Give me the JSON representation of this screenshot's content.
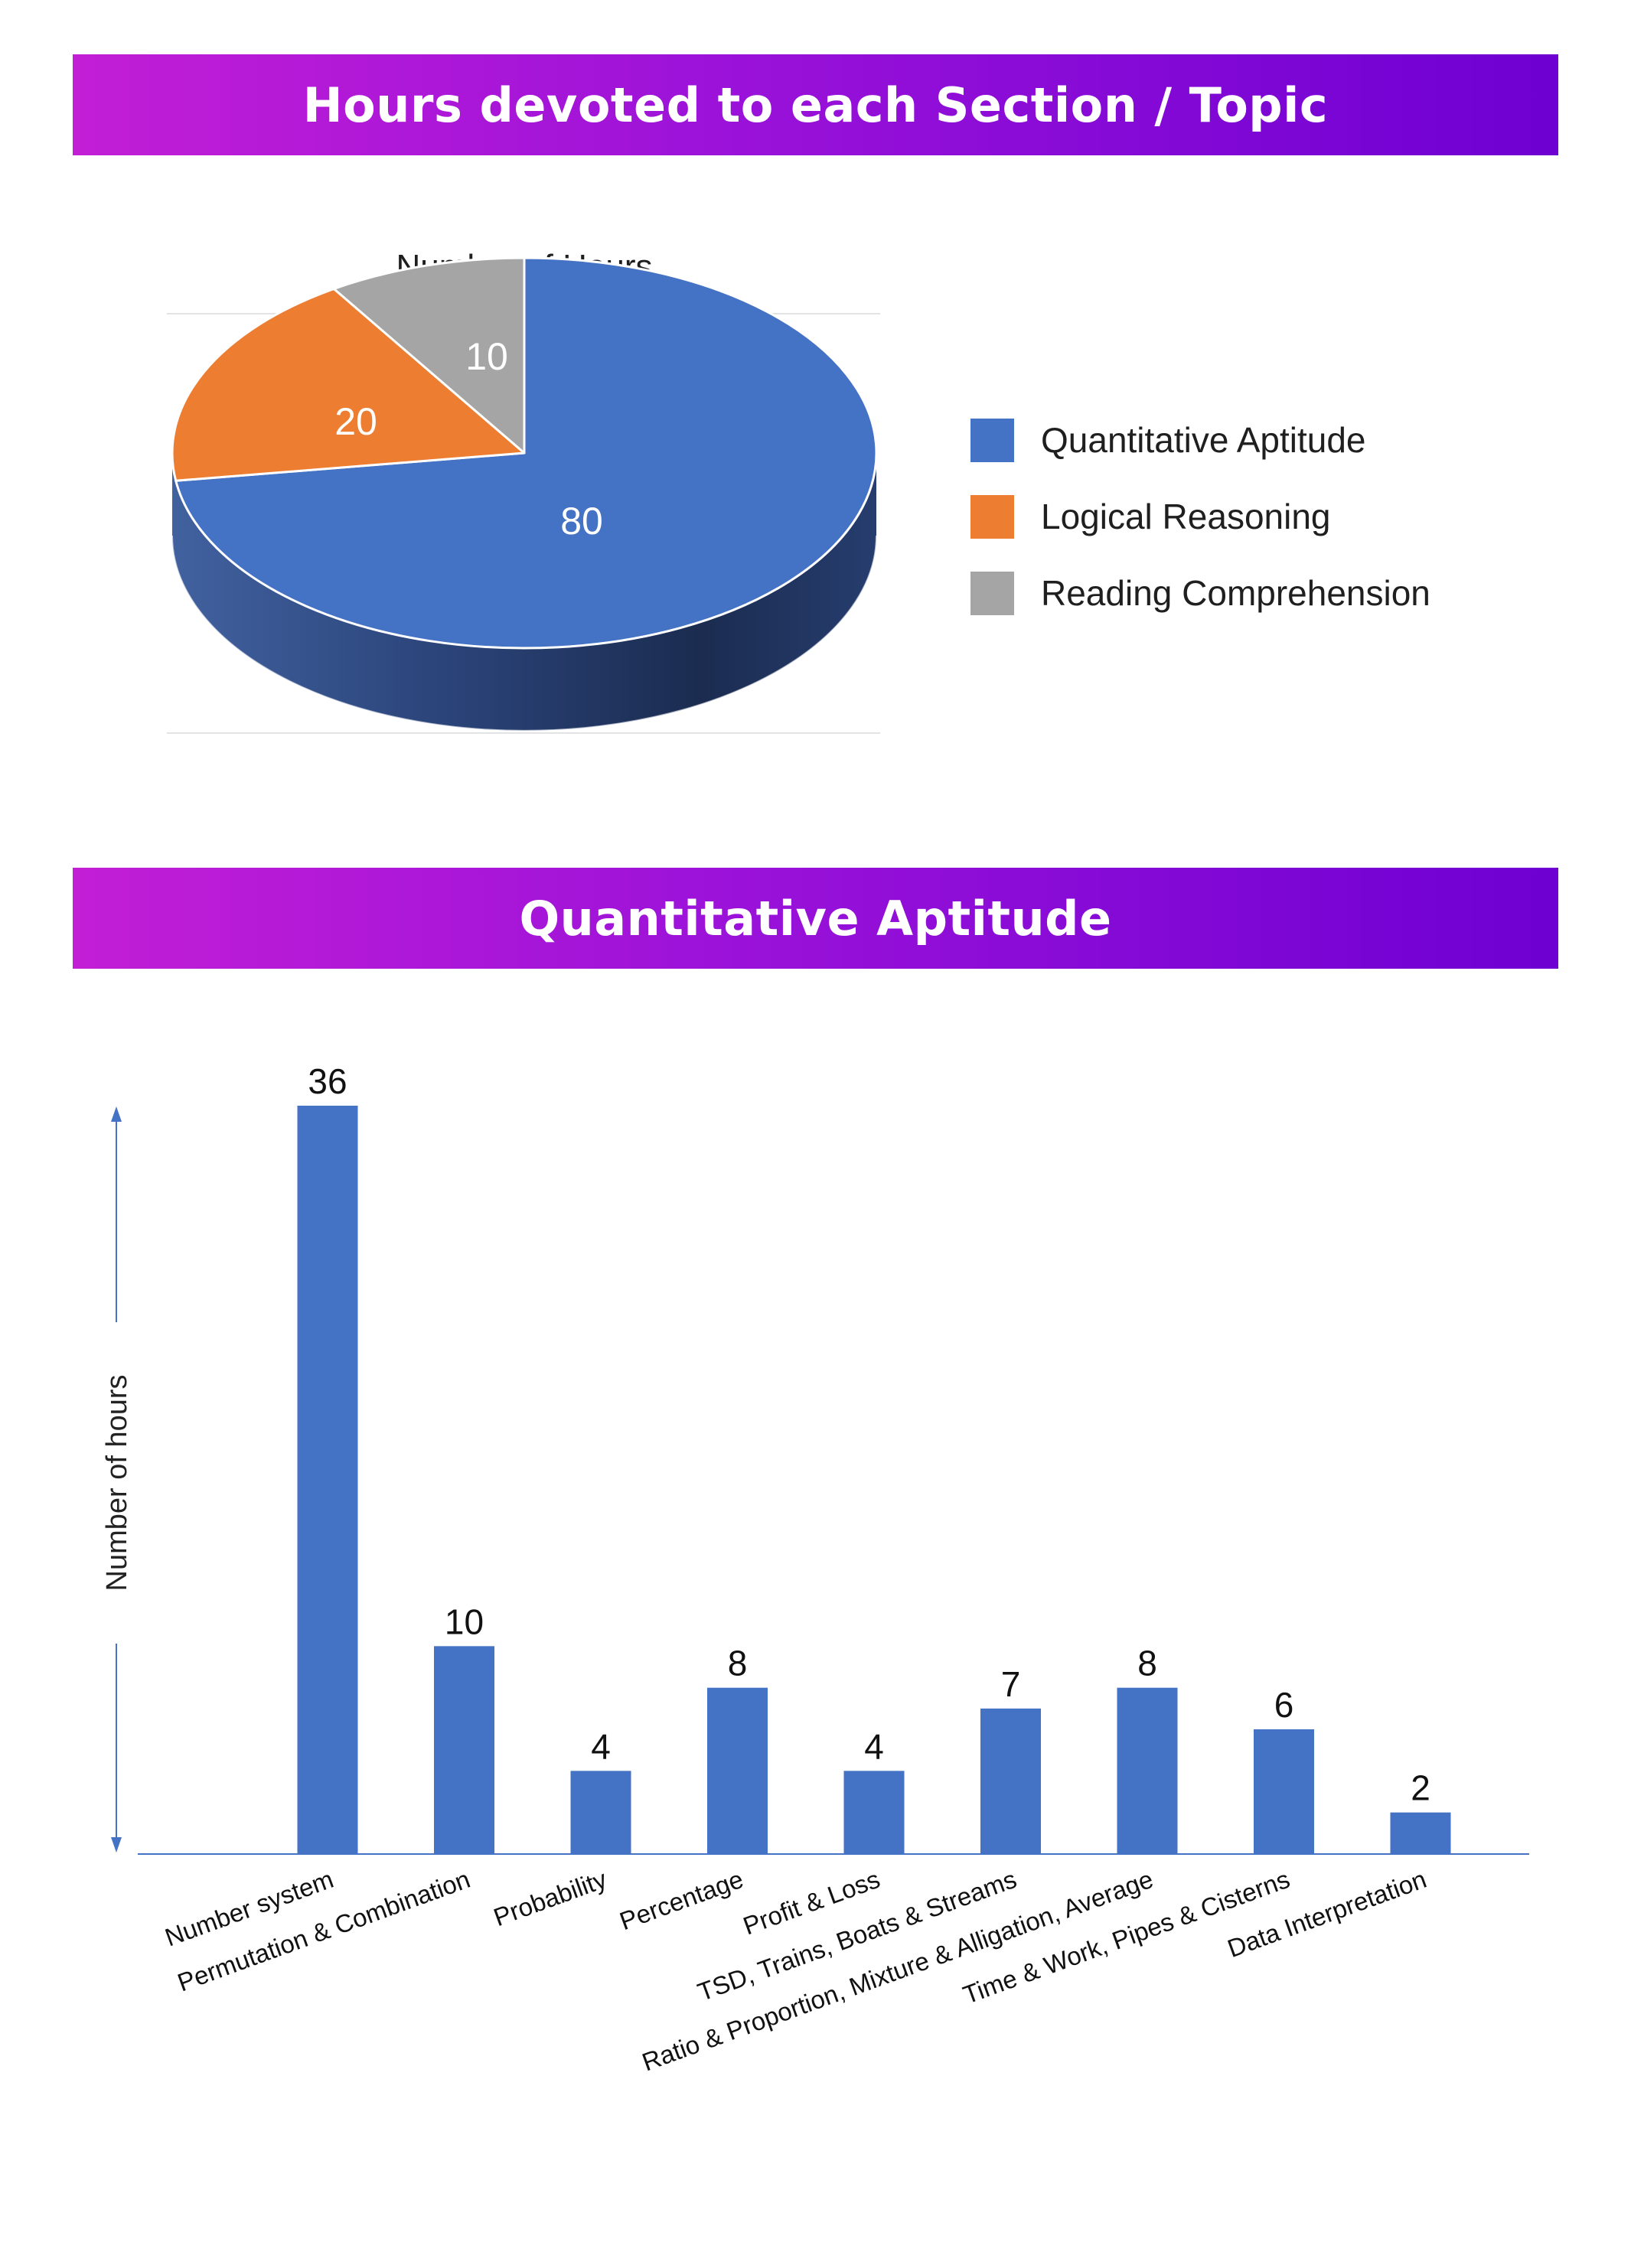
{
  "banners": {
    "section_title": "Hours devoted to each Section / Topic",
    "qa_title": "Quantitative Aptitude"
  },
  "colors": {
    "bar": "#4472c4",
    "axis": "#4472c4",
    "banner_start": "#c21ed6",
    "banner_end": "#6e00d2"
  },
  "chart_data": [
    {
      "type": "pie",
      "title": "Number of Hours",
      "style": "3d",
      "legend_position": "right",
      "slices": [
        {
          "label": "Quantitative Aptitude",
          "value": 80,
          "color": "#4472c4"
        },
        {
          "label": "Logical Reasoning",
          "value": 20,
          "color": "#ed7d31"
        },
        {
          "label": "Reading Comprehension",
          "value": 10,
          "color": "#a5a5a5"
        }
      ]
    },
    {
      "type": "bar",
      "ylabel": "Number of hours",
      "ylim": [
        0,
        36
      ],
      "grid": false,
      "categories": [
        "Number system",
        "Permutation & Combination",
        "Probability",
        "Percentage",
        "Profit & Loss",
        "TSD, Trains, Boats & Streams",
        "Ratio & Proportion, Mixture & Alligation, Average",
        "Time & Work, Pipes & Cisterns",
        "Data Interpretation"
      ],
      "values": [
        36,
        10,
        4,
        8,
        4,
        7,
        8,
        6,
        2
      ]
    }
  ]
}
